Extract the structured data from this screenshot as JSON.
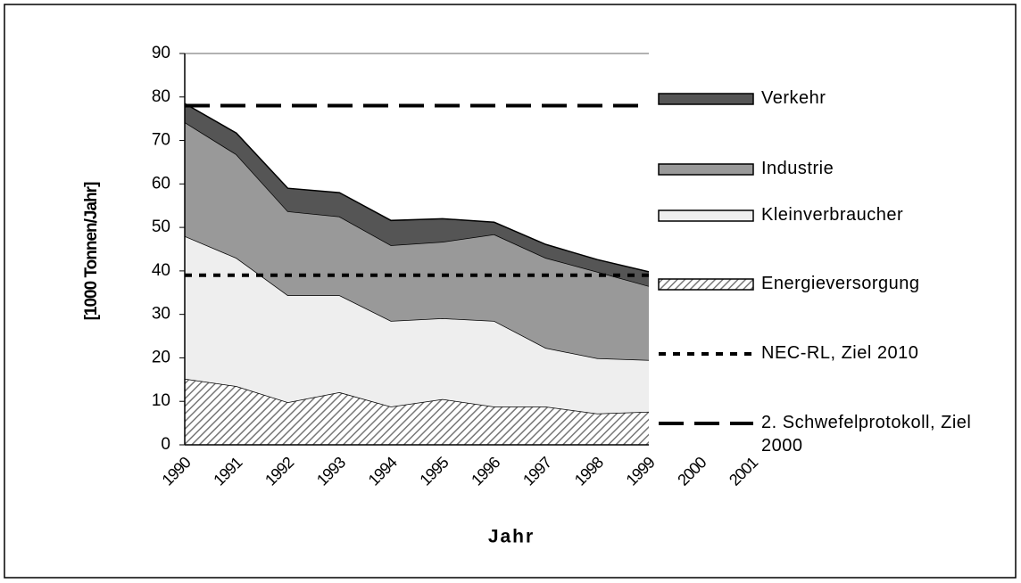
{
  "chart_data": {
    "type": "stacked_area",
    "x_label": "Jahr",
    "y_label": "[1000 Tonnen/Jahr]",
    "categories": [
      "1990",
      "1991",
      "1992",
      "1993",
      "1994",
      "1995",
      "1996",
      "1997",
      "1998",
      "1999",
      "2000",
      "2001"
    ],
    "series": [
      {
        "name": "Energieversorgung",
        "color": "hatch",
        "values": [
          15.2,
          13.5,
          9.8,
          12.1,
          8.8,
          10.5,
          8.8,
          8.8,
          7.2,
          7.6,
          null,
          null
        ]
      },
      {
        "name": "Kleinverbraucher",
        "color": "#eeeeee",
        "values": [
          32.8,
          29.5,
          24.6,
          22.3,
          19.7,
          18.6,
          19.7,
          13.5,
          12.7,
          11.9,
          null,
          null
        ]
      },
      {
        "name": "Industrie",
        "color": "#999999",
        "values": [
          26.2,
          23.8,
          19.3,
          18.1,
          17.4,
          17.6,
          19.9,
          20.7,
          19.9,
          17.0,
          null,
          null
        ]
      },
      {
        "name": "Verkehr",
        "color": "#555555",
        "values": [
          4.3,
          4.9,
          5.3,
          5.5,
          5.7,
          5.3,
          2.8,
          3.1,
          2.8,
          3.3,
          null,
          null
        ]
      }
    ],
    "reference_lines": [
      {
        "name": "NEC-RL, Ziel 2010",
        "value": 39,
        "style": "dotted"
      },
      {
        "name": "2. Schwefelprotokoll, Ziel 2000",
        "value": 78,
        "style": "dashed"
      }
    ],
    "ylim": [
      0,
      90
    ],
    "yticks": [
      0,
      10,
      20,
      30,
      40,
      50,
      60,
      70,
      80,
      90
    ]
  }
}
